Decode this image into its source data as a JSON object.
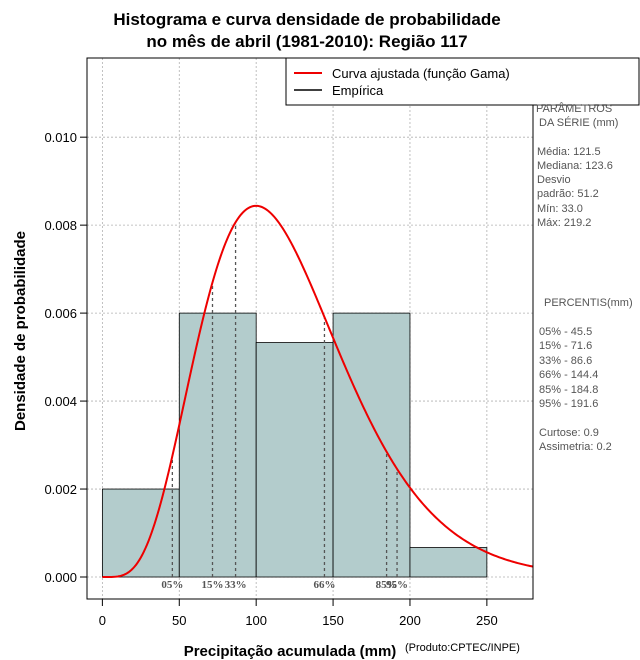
{
  "chart_data": {
    "type": "bar",
    "title_line1": "Histograma e curva densidade de probabilidade",
    "title_line2": "no mês de abril (1981-2010): Região 117",
    "xlabel": "Precipitação acumulada (mm)",
    "ylabel": "Densidade de probabilidade",
    "credit": "(Produto:CPTEC/INPE)",
    "xlim": [
      -10,
      280
    ],
    "ylim": [
      -0.0005,
      0.0118
    ],
    "x_ticks": [
      0,
      50,
      100,
      150,
      200,
      250
    ],
    "x_tick_labels": [
      "0",
      "50",
      "100",
      "150",
      "200",
      "250"
    ],
    "y_ticks": [
      0.0,
      0.002,
      0.004,
      0.006,
      0.008,
      0.01
    ],
    "y_tick_labels": [
      "0.000",
      "0.002",
      "0.004",
      "0.006",
      "0.008",
      "0.010"
    ],
    "grid": true,
    "histogram": {
      "name": "Empírica",
      "bins": [
        {
          "start": 0,
          "end": 50,
          "density": 0.002
        },
        {
          "start": 50,
          "end": 100,
          "density": 0.006
        },
        {
          "start": 100,
          "end": 150,
          "density": 0.00533
        },
        {
          "start": 150,
          "end": 200,
          "density": 0.006
        },
        {
          "start": 200,
          "end": 250,
          "density": 0.00067
        }
      ],
      "fill_color": "#b3cccc",
      "edge_color": "#000000"
    },
    "curve": {
      "name": "Curva ajustada (função Gama)",
      "color": "#ee0000",
      "distribution": "gamma",
      "mean": 121.5,
      "sd": 51.2,
      "x_max": 280
    },
    "legend": {
      "position": "top-right",
      "items": [
        {
          "label": "Curva ajustada (função Gama)",
          "color": "#ee0000"
        },
        {
          "label": "Empírica",
          "color": "#000000"
        }
      ]
    },
    "percentile_markers": [
      {
        "label": "05%",
        "value": 45.5
      },
      {
        "label": "15%",
        "value": 71.6
      },
      {
        "label": "33%",
        "value": 86.6
      },
      {
        "label": "66%",
        "value": 144.4
      },
      {
        "label": "85%",
        "value": 184.8
      },
      {
        "label": "95%",
        "value": 191.6
      }
    ]
  },
  "side_panel": {
    "params_title_1": "PARÂMETROS",
    "params_title_2": "DA SÉRIE (mm)",
    "params": [
      "Média:  121.5",
      "Mediana:  123.6",
      "Desvio",
      "padrão:  51.2",
      "Mín:  33.0",
      "Máx:  219.2"
    ],
    "percentis_title": "PERCENTIS(mm)",
    "percentis": [
      "05% -  45.5",
      "15% -  71.6",
      "33% -  86.6",
      "66% -  144.4",
      "85% -  184.8",
      "95% -  191.6"
    ],
    "stats": [
      "Curtose:  0.9",
      "Assimetria:  0.2"
    ]
  },
  "colors": {
    "grid": "#b0b0b0",
    "marker": "#555555",
    "side_text": "#555555"
  }
}
